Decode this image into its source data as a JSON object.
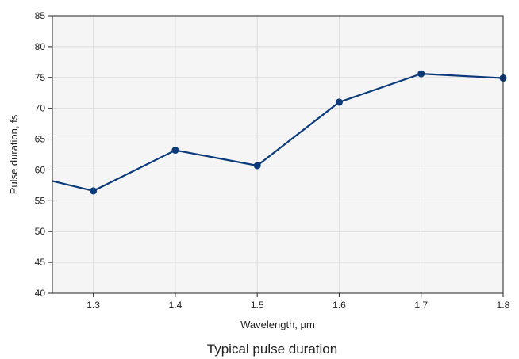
{
  "chart_data": {
    "type": "line",
    "x": [
      1.25,
      1.3,
      1.4,
      1.5,
      1.6,
      1.7,
      1.8
    ],
    "series": [
      {
        "values": [
          58.2,
          56.6,
          63.2,
          60.7,
          71.0,
          75.6,
          74.9
        ]
      }
    ],
    "marker_from_index": 1,
    "xlabel": "Wavelength, µm",
    "ylabel": "Pulse duration, fs",
    "caption": "Typical pulse duration",
    "xlim": [
      1.25,
      1.8
    ],
    "ylim": [
      40,
      85
    ],
    "xticks": [
      "1.3",
      "1.4",
      "1.5",
      "1.6",
      "1.7",
      "1.8"
    ],
    "yticks": [
      "40",
      "45",
      "50",
      "55",
      "60",
      "65",
      "70",
      "75",
      "80",
      "85"
    ],
    "grid": true,
    "colors": {
      "line": "#0b3a7a",
      "plot_bg": "#f5f5f5",
      "grid": "#dddddd",
      "axis": "#222222"
    }
  }
}
